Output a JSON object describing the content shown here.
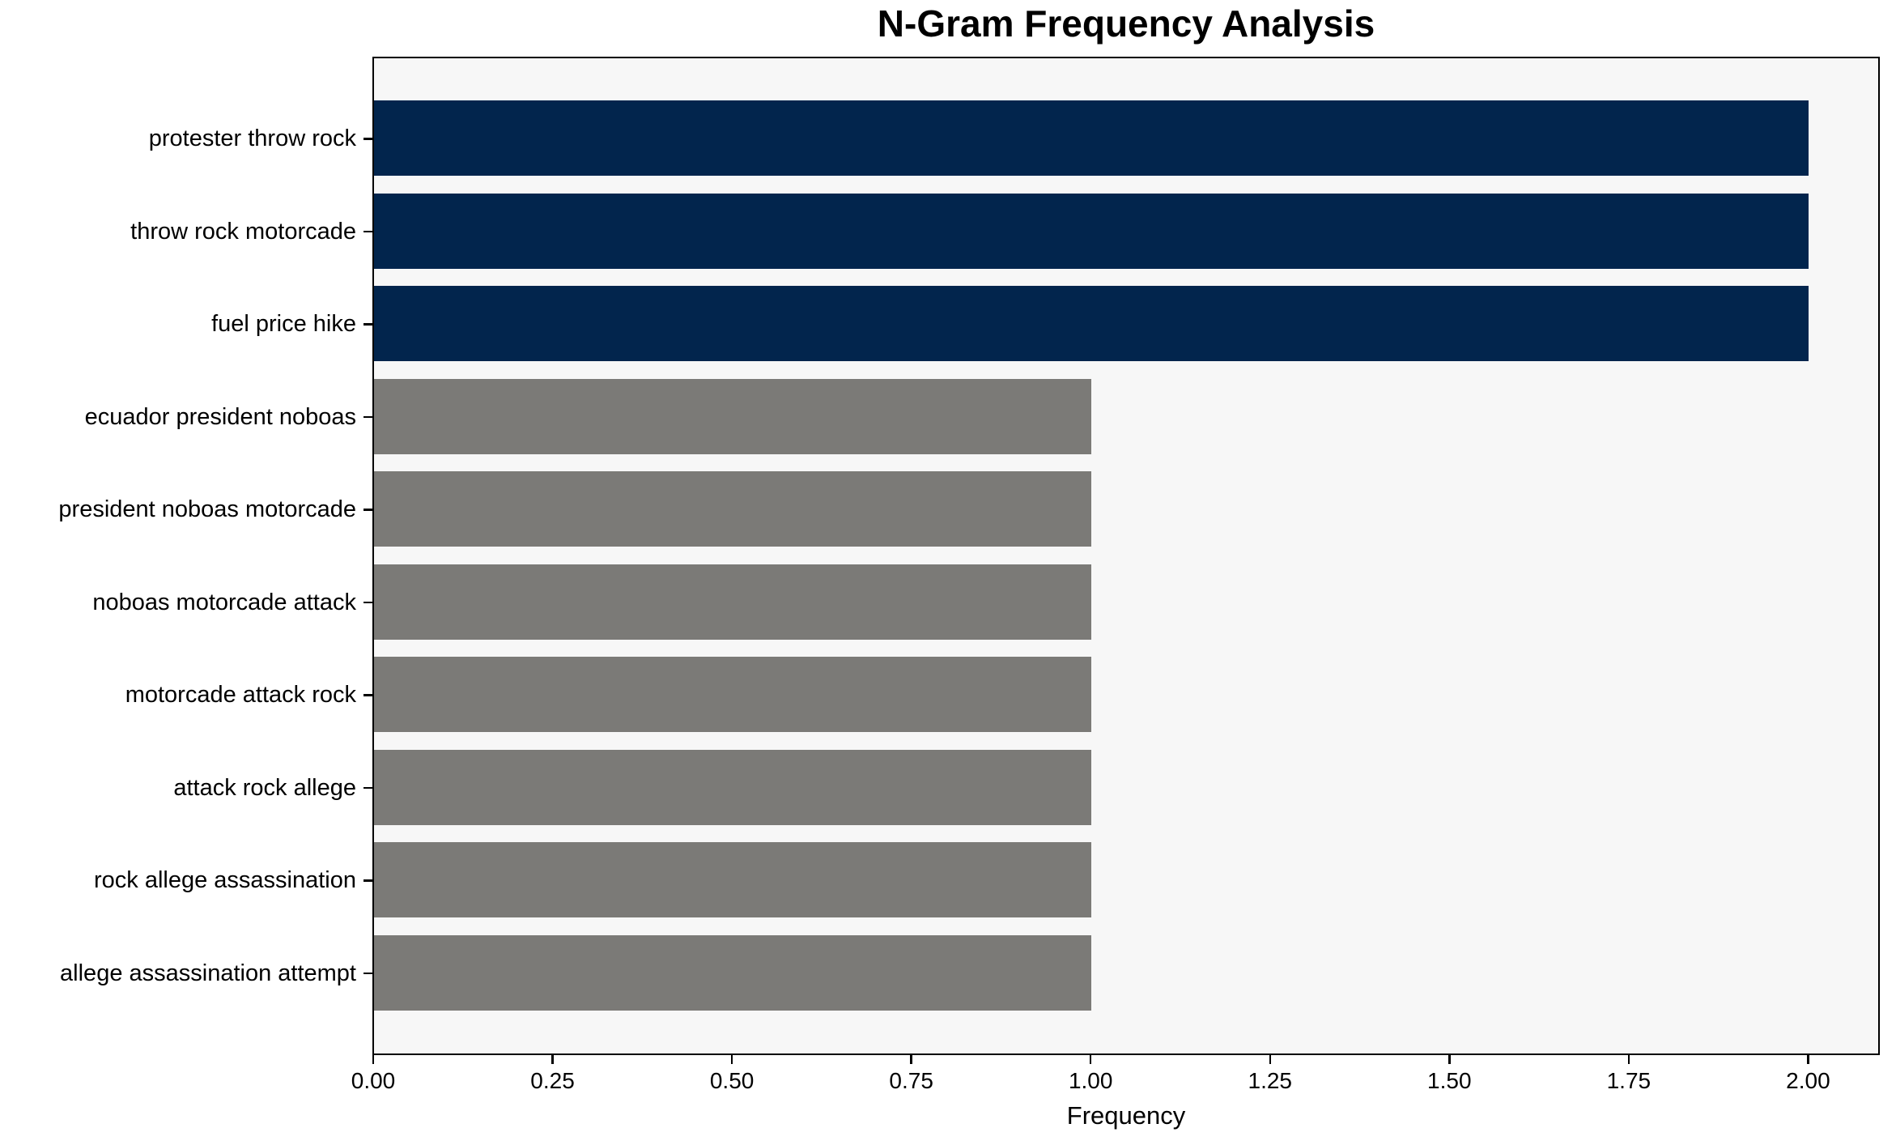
{
  "chart_data": {
    "type": "bar",
    "orientation": "horizontal",
    "title": "N-Gram Frequency Analysis",
    "xlabel": "Frequency",
    "ylabel": "",
    "categories": [
      "protester throw rock",
      "throw rock motorcade",
      "fuel price hike",
      "ecuador president noboas",
      "president noboas motorcade",
      "noboas motorcade attack",
      "motorcade attack rock",
      "attack rock allege",
      "rock allege assassination",
      "allege assassination attempt"
    ],
    "values": [
      2,
      2,
      2,
      1,
      1,
      1,
      1,
      1,
      1,
      1
    ],
    "bar_colors": [
      "#02254d",
      "#02254d",
      "#02254d",
      "#7b7a77",
      "#7b7a77",
      "#7b7a77",
      "#7b7a77",
      "#7b7a77",
      "#7b7a77",
      "#7b7a77"
    ],
    "xlim": [
      0,
      2.1
    ],
    "xtick_values": [
      0,
      0.25,
      0.5,
      0.75,
      1.0,
      1.25,
      1.5,
      1.75,
      2.0
    ],
    "xtick_labels": [
      "0.00",
      "0.25",
      "0.50",
      "0.75",
      "1.00",
      "1.25",
      "1.50",
      "1.75",
      "2.00"
    ],
    "grid": false,
    "legend": "none",
    "colors": {
      "highlight": "#02254d",
      "base": "#7b7a77",
      "plot_background": "#f7f7f7",
      "figure_background": "#ffffff",
      "text": "#000000"
    }
  }
}
